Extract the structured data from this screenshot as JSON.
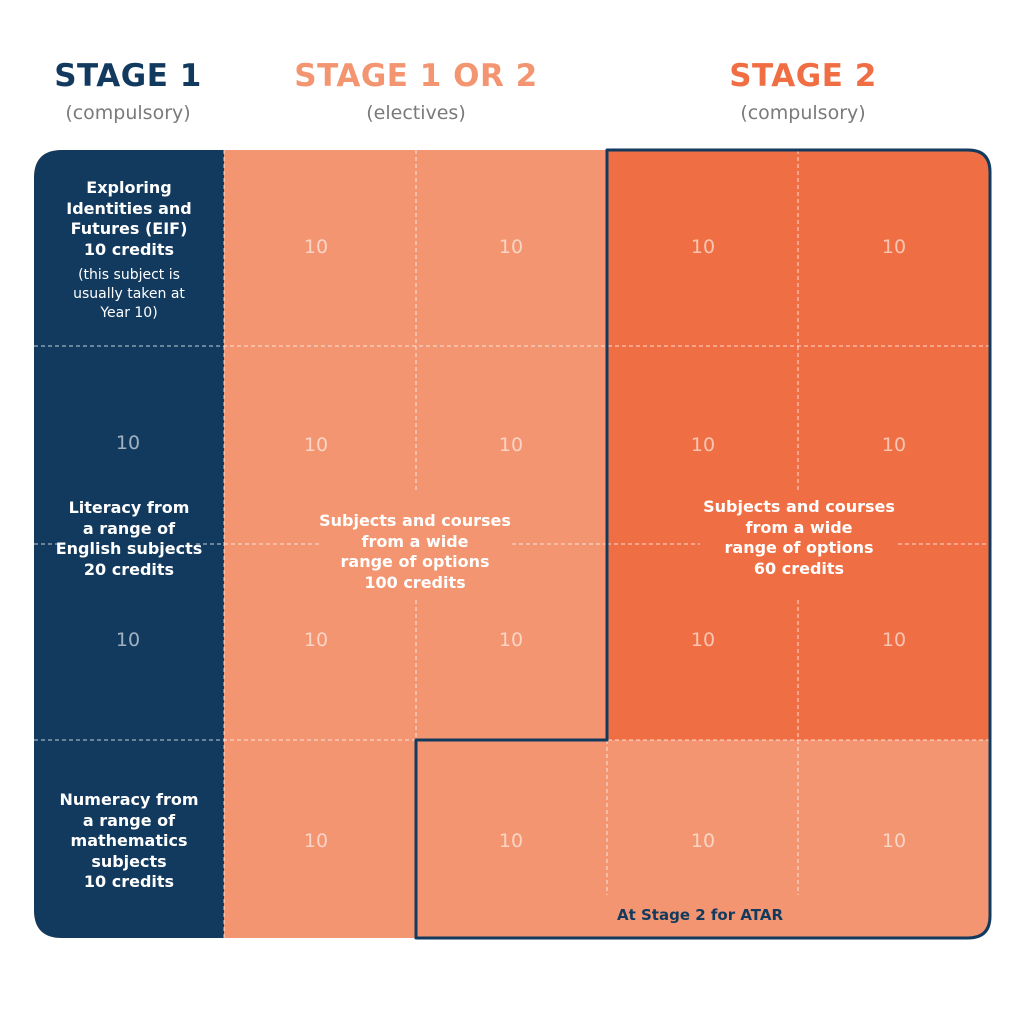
{
  "headers": {
    "stage1": {
      "title": "STAGE 1",
      "subtitle": "(compulsory)"
    },
    "stage12": {
      "title": "STAGE 1 OR 2",
      "subtitle": "(electives)"
    },
    "stage2": {
      "title": "STAGE 2",
      "subtitle": "(compulsory)"
    }
  },
  "blocks": {
    "eif": {
      "line1": "Exploring",
      "line2": "Identities and",
      "line3": "Futures (EIF)",
      "line4": "10 credits",
      "note1": "(this subject is",
      "note2": "usually taken at",
      "note3": "Year 10)"
    },
    "literacy": {
      "line1": "Literacy from",
      "line2": "a range of",
      "line3": "English subjects",
      "line4": "20 credits"
    },
    "numeracy": {
      "line1": "Numeracy from",
      "line2": "a range of",
      "line3": "mathematics",
      "line4": "subjects",
      "line5": "10 credits"
    },
    "electives": {
      "line1": "Subjects and courses",
      "line2": "from a wide",
      "line3": "range of options",
      "line4": "100 credits"
    },
    "stage2": {
      "line1": "Subjects and courses",
      "line2": "from a wide",
      "line3": "range of options",
      "line4": "60 credits"
    },
    "atar_label": "At Stage 2 for ATAR"
  },
  "credit_value": "10",
  "colors": {
    "navy": "#123a5e",
    "light_orange": "#f29570",
    "dark_orange": "#f06e43",
    "stage1_title": "#123a5e",
    "stage12_title": "#f29570",
    "stage2_title": "#f06e43"
  }
}
